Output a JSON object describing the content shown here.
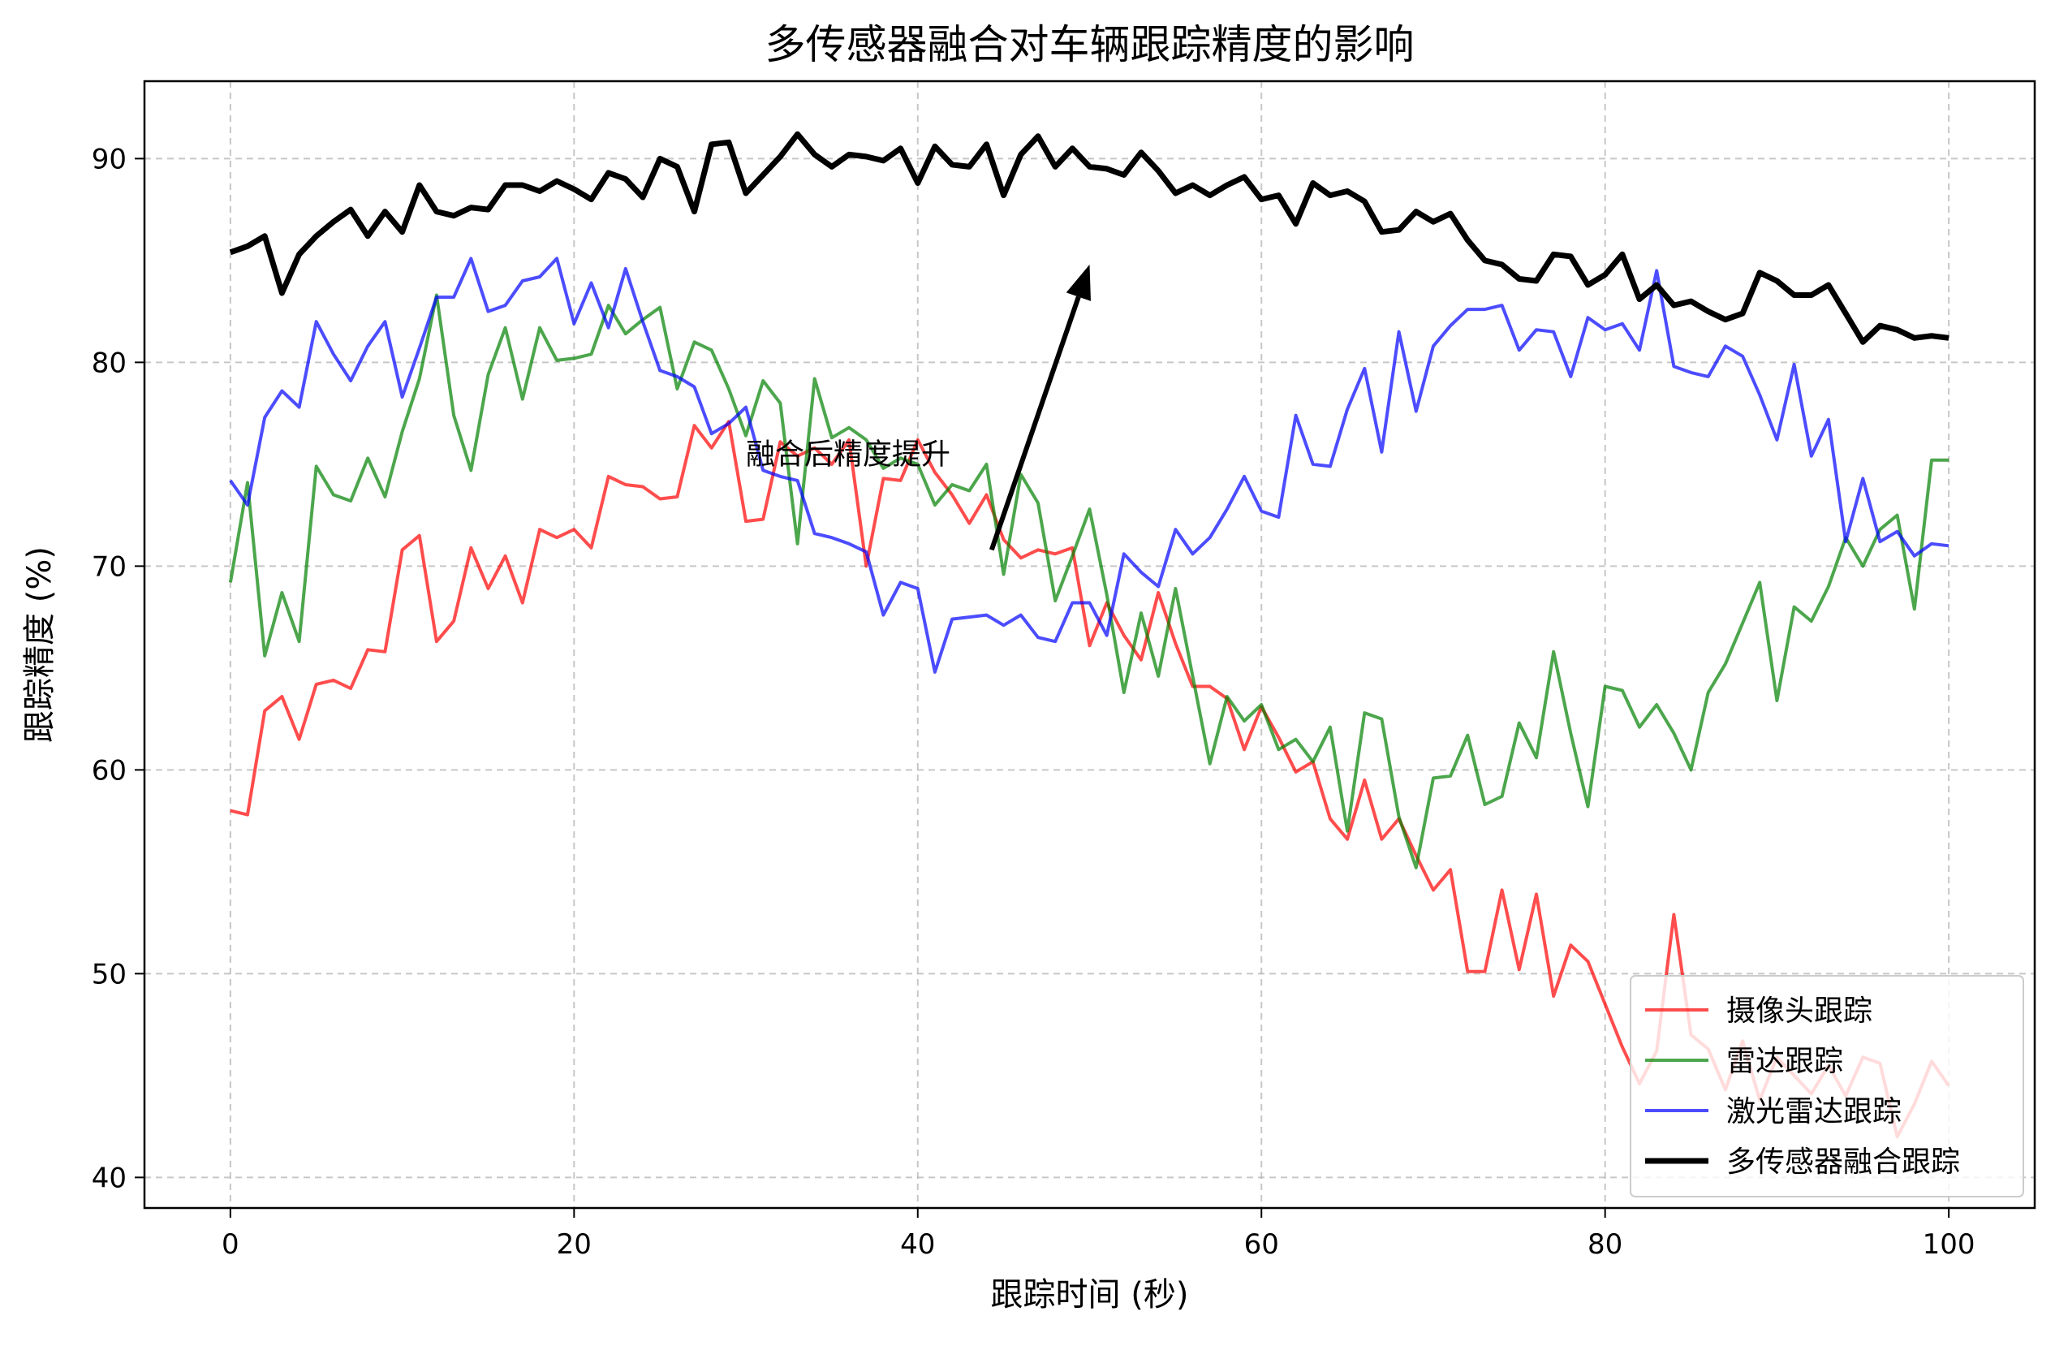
{
  "chart_data": {
    "type": "line",
    "title": "多传感器融合对车辆跟踪精度的影响",
    "xlabel": "跟踪时间 (秒)",
    "ylabel": "跟踪精度 (%)",
    "xlim": [
      -5,
      105
    ],
    "ylim": [
      38.5,
      93.8
    ],
    "xticks": [
      0,
      20,
      40,
      60,
      80,
      100
    ],
    "yticks": [
      40,
      50,
      60,
      70,
      80,
      90
    ],
    "grid": true,
    "legend_position": "bottom-right",
    "annotation": {
      "text": "融合后精度提升",
      "text_x": 30,
      "text_y": 75.5,
      "arrow_tail": [
        44.3,
        70.8
      ],
      "arrow_head": [
        50,
        84.8
      ]
    },
    "series": [
      {
        "name": "摄像头跟踪",
        "color": "#ff0000",
        "opacity": 0.7,
        "width": 4,
        "x": [
          0,
          1,
          2,
          3,
          4,
          5,
          6,
          7,
          8,
          9,
          10,
          11,
          12,
          13,
          14,
          15,
          16,
          17,
          18,
          19,
          20,
          21,
          22,
          23,
          24,
          25,
          26,
          27,
          28,
          29,
          30,
          31,
          32,
          33,
          34,
          35,
          36,
          37,
          38,
          39,
          40,
          41,
          42,
          43,
          44,
          45,
          46,
          47,
          48,
          49,
          50,
          51,
          52,
          53,
          54,
          55,
          56,
          57,
          58,
          59,
          60,
          61,
          62,
          63,
          64,
          65,
          66,
          67,
          68,
          69,
          70,
          71,
          72,
          73,
          74,
          75,
          76,
          77,
          78,
          79,
          80,
          81,
          82,
          83,
          84,
          85,
          86,
          87,
          88,
          89,
          90,
          91,
          92,
          93,
          94,
          95,
          96,
          97,
          98,
          99,
          100
        ],
        "values": [
          58.0,
          57.8,
          62.9,
          63.6,
          61.5,
          64.2,
          64.4,
          64.0,
          65.9,
          65.8,
          70.8,
          71.5,
          66.3,
          67.3,
          70.9,
          68.9,
          70.5,
          68.2,
          71.8,
          71.4,
          71.8,
          70.9,
          74.4,
          74.0,
          73.9,
          73.3,
          73.4,
          76.9,
          75.8,
          77.1,
          72.2,
          72.3,
          76.1,
          75.4,
          75.8,
          75.0,
          76.2,
          70.0,
          74.3,
          74.2,
          76.2,
          74.6,
          73.5,
          72.1,
          73.5,
          71.3,
          70.4,
          70.8,
          70.6,
          70.9,
          66.1,
          68.2,
          66.6,
          65.4,
          68.7,
          66.2,
          64.1,
          64.1,
          63.5,
          61.0,
          63.1,
          61.6,
          59.9,
          60.4,
          57.6,
          56.6,
          59.5,
          56.6,
          57.6,
          55.8,
          54.1,
          55.1,
          50.1,
          50.1,
          54.1,
          50.2,
          53.9,
          48.9,
          51.4,
          50.6,
          48.5,
          46.4,
          44.6,
          46.2,
          52.9,
          47.0,
          46.3,
          44.3,
          46.7,
          43.8,
          45.9,
          45.0,
          44.1,
          45.5,
          44.0,
          45.9,
          45.6,
          42.0,
          43.6,
          45.7,
          44.5
        ]
      },
      {
        "name": "雷达跟踪",
        "color": "#008000",
        "opacity": 0.7,
        "width": 4,
        "x": [
          0,
          1,
          2,
          3,
          4,
          5,
          6,
          7,
          8,
          9,
          10,
          11,
          12,
          13,
          14,
          15,
          16,
          17,
          18,
          19,
          20,
          21,
          22,
          23,
          24,
          25,
          26,
          27,
          28,
          29,
          30,
          31,
          32,
          33,
          34,
          35,
          36,
          37,
          38,
          39,
          40,
          41,
          42,
          43,
          44,
          45,
          46,
          47,
          48,
          49,
          50,
          51,
          52,
          53,
          54,
          55,
          56,
          57,
          58,
          59,
          60,
          61,
          62,
          63,
          64,
          65,
          66,
          67,
          68,
          69,
          70,
          71,
          72,
          73,
          74,
          75,
          76,
          77,
          78,
          79,
          80,
          81,
          82,
          83,
          84,
          85,
          86,
          87,
          88,
          89,
          90,
          91,
          92,
          93,
          94,
          95,
          96,
          97,
          98,
          99,
          100
        ],
        "values": [
          69.2,
          74.1,
          65.6,
          68.7,
          66.3,
          74.9,
          73.5,
          73.2,
          75.3,
          73.4,
          76.6,
          79.2,
          83.3,
          77.4,
          74.7,
          79.4,
          81.7,
          78.2,
          81.7,
          80.1,
          80.2,
          80.4,
          82.8,
          81.4,
          82.1,
          82.7,
          78.7,
          81.0,
          80.6,
          78.7,
          76.4,
          79.1,
          78.0,
          71.1,
          79.2,
          76.3,
          76.8,
          76.2,
          74.8,
          75.3,
          75.0,
          73.0,
          74.0,
          73.7,
          75.0,
          69.6,
          74.5,
          73.1,
          68.3,
          70.5,
          72.8,
          68.6,
          63.8,
          67.7,
          64.6,
          68.9,
          64.6,
          60.3,
          63.6,
          62.4,
          63.2,
          61.0,
          61.5,
          60.4,
          62.1,
          57.0,
          62.8,
          62.5,
          57.7,
          55.2,
          59.6,
          59.7,
          61.7,
          58.3,
          58.7,
          62.3,
          60.6,
          65.8,
          61.8,
          58.2,
          64.1,
          63.9,
          62.1,
          63.2,
          61.8,
          60.0,
          63.8,
          65.2,
          67.2,
          69.2,
          63.4,
          68.0,
          67.3,
          69.0,
          71.4,
          70.0,
          71.8,
          72.5,
          67.9,
          75.2,
          75.2
        ]
      },
      {
        "name": "激光雷达跟踪",
        "color": "#0000ff",
        "opacity": 0.7,
        "width": 4,
        "x": [
          0,
          1,
          2,
          3,
          4,
          5,
          6,
          7,
          8,
          9,
          10,
          11,
          12,
          13,
          14,
          15,
          16,
          17,
          18,
          19,
          20,
          21,
          22,
          23,
          24,
          25,
          26,
          27,
          28,
          29,
          30,
          31,
          32,
          33,
          34,
          35,
          36,
          37,
          38,
          39,
          40,
          41,
          42,
          43,
          44,
          45,
          46,
          47,
          48,
          49,
          50,
          51,
          52,
          53,
          54,
          55,
          56,
          57,
          58,
          59,
          60,
          61,
          62,
          63,
          64,
          65,
          66,
          67,
          68,
          69,
          70,
          71,
          72,
          73,
          74,
          75,
          76,
          77,
          78,
          79,
          80,
          81,
          82,
          83,
          84,
          85,
          86,
          87,
          88,
          89,
          90,
          91,
          92,
          93,
          94,
          95,
          96,
          97,
          98,
          99,
          100
        ],
        "values": [
          74.2,
          73.0,
          77.3,
          78.6,
          77.8,
          82.0,
          80.4,
          79.1,
          80.8,
          82.0,
          78.3,
          80.7,
          83.2,
          83.2,
          85.1,
          82.5,
          82.8,
          84.0,
          84.2,
          85.1,
          81.9,
          83.9,
          81.7,
          84.6,
          82.0,
          79.6,
          79.3,
          78.8,
          76.5,
          77.0,
          77.8,
          74.7,
          74.4,
          74.2,
          71.6,
          71.4,
          71.1,
          70.7,
          67.6,
          69.2,
          68.9,
          64.8,
          67.4,
          67.5,
          67.6,
          67.1,
          67.6,
          66.5,
          66.3,
          68.2,
          68.2,
          66.6,
          70.6,
          69.7,
          69.0,
          71.8,
          70.6,
          71.4,
          72.8,
          74.4,
          72.7,
          72.4,
          77.4,
          75.0,
          74.9,
          77.7,
          79.7,
          75.6,
          81.5,
          77.6,
          80.8,
          81.8,
          82.6,
          82.6,
          82.8,
          80.6,
          81.6,
          81.5,
          79.3,
          82.2,
          81.6,
          81.9,
          80.6,
          84.5,
          79.8,
          79.5,
          79.3,
          80.8,
          80.3,
          78.4,
          76.2,
          79.9,
          75.4,
          77.2,
          71.2,
          74.3,
          71.2,
          71.7,
          70.5,
          71.1,
          71.0
        ]
      },
      {
        "name": "多传感器融合跟踪",
        "color": "#000000",
        "opacity": 1,
        "width": 7,
        "x": [
          0,
          1,
          2,
          3,
          4,
          5,
          6,
          7,
          8,
          9,
          10,
          11,
          12,
          13,
          14,
          15,
          16,
          17,
          18,
          19,
          20,
          21,
          22,
          23,
          24,
          25,
          26,
          27,
          28,
          29,
          30,
          31,
          32,
          33,
          34,
          35,
          36,
          37,
          38,
          39,
          40,
          41,
          42,
          43,
          44,
          45,
          46,
          47,
          48,
          49,
          50,
          51,
          52,
          53,
          54,
          55,
          56,
          57,
          58,
          59,
          60,
          61,
          62,
          63,
          64,
          65,
          66,
          67,
          68,
          69,
          70,
          71,
          72,
          73,
          74,
          75,
          76,
          77,
          78,
          79,
          80,
          81,
          82,
          83,
          84,
          85,
          86,
          87,
          88,
          89,
          90,
          91,
          92,
          93,
          94,
          95,
          96,
          97,
          98,
          99,
          100
        ],
        "values": [
          85.4,
          85.7,
          86.2,
          83.4,
          85.3,
          86.2,
          86.9,
          87.5,
          86.2,
          87.4,
          86.4,
          88.7,
          87.4,
          87.2,
          87.6,
          87.5,
          88.7,
          88.7,
          88.4,
          88.9,
          88.5,
          88.0,
          89.3,
          89.0,
          88.1,
          90.0,
          89.6,
          87.4,
          90.7,
          90.8,
          88.3,
          89.2,
          90.1,
          91.2,
          90.2,
          89.6,
          90.2,
          90.1,
          89.9,
          90.5,
          88.8,
          90.6,
          89.7,
          89.6,
          90.7,
          88.2,
          90.2,
          91.1,
          89.6,
          90.5,
          89.6,
          89.5,
          89.2,
          90.3,
          89.4,
          88.3,
          88.7,
          88.2,
          88.7,
          89.1,
          88.0,
          88.2,
          86.8,
          88.8,
          88.2,
          88.4,
          87.9,
          86.4,
          86.5,
          87.4,
          86.9,
          87.3,
          86.0,
          85.0,
          84.8,
          84.1,
          84.0,
          85.3,
          85.2,
          83.8,
          84.3,
          85.3,
          83.1,
          83.8,
          82.8,
          83.0,
          82.5,
          82.1,
          82.4,
          84.4,
          84.0,
          83.3,
          83.3,
          83.8,
          82.4,
          81.0,
          81.8,
          81.6,
          81.2,
          81.3,
          81.2
        ]
      }
    ]
  }
}
